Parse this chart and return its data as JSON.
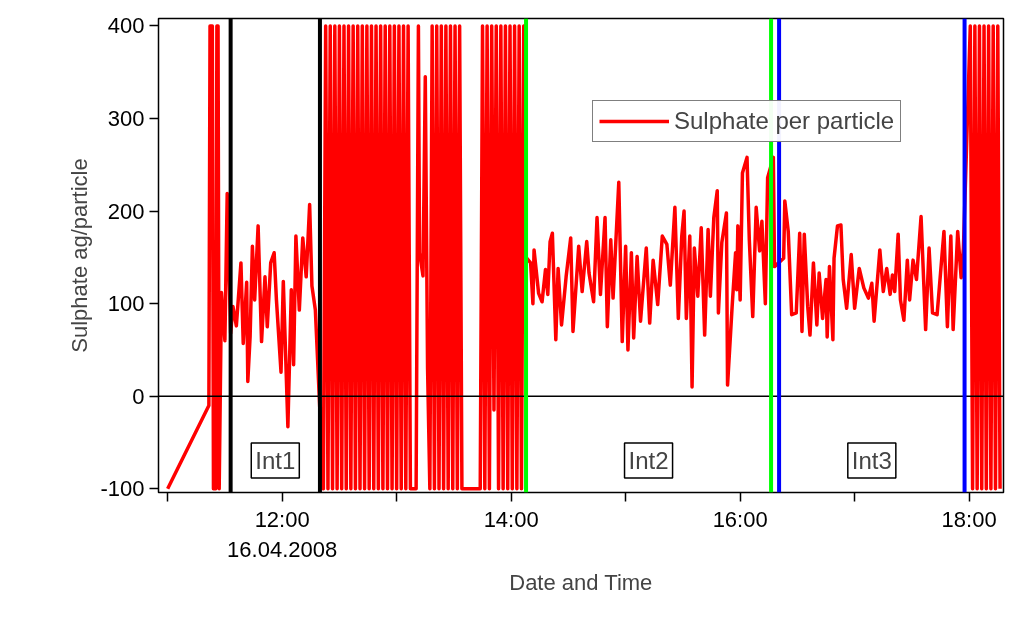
{
  "chart_data": {
    "type": "line",
    "xlabel": "Date and Time",
    "ylabel": "Sulphate ag/particle",
    "xlim": [
      10.92,
      18.3
    ],
    "ylim": [
      -104,
      408
    ],
    "xticks": [
      {
        "value": 11,
        "label": null
      },
      {
        "value": 12,
        "label": "12:00\n16.04.2008"
      },
      {
        "value": 13,
        "label": null
      },
      {
        "value": 14,
        "label": "14:00"
      },
      {
        "value": 15,
        "label": null
      },
      {
        "value": 16,
        "label": "16:00"
      },
      {
        "value": 17,
        "label": null
      },
      {
        "value": 18,
        "label": "18:00"
      }
    ],
    "yticks": [
      -100,
      0,
      100,
      200,
      300,
      400
    ],
    "grid": false,
    "legend": "top right",
    "marker": "none",
    "line_style": "solid",
    "ref_lines": [
      {
        "axis": "y",
        "value": 0,
        "label": null,
        "color": "#000000"
      },
      {
        "axis": "x",
        "value": 11.55,
        "label": null,
        "color": "#000000"
      },
      {
        "axis": "x",
        "value": 12.33,
        "label": null,
        "color": "#000000"
      },
      {
        "axis": "x",
        "value": 14.13,
        "label": null,
        "color": "#00ff00"
      },
      {
        "axis": "x",
        "value": 16.27,
        "label": null,
        "color": "#00ff00"
      },
      {
        "axis": "x",
        "value": 16.34,
        "label": null,
        "color": "#0000ff"
      },
      {
        "axis": "x",
        "value": 17.96,
        "label": null,
        "color": "#0000ff"
      }
    ],
    "annotations": [
      "Int1",
      "Int2",
      "Int3"
    ],
    "series": [
      {
        "name": "Sulphate per particle",
        "color": "#ff0000",
        "x": [
          11.0,
          11.36,
          11.37,
          11.39,
          11.4,
          11.42,
          11.43,
          11.44,
          11.45,
          11.47,
          11.5,
          11.52,
          11.55,
          11.57,
          11.6,
          11.64,
          11.66,
          11.69,
          11.7,
          11.72,
          11.74,
          11.76,
          11.79,
          11.82,
          11.85,
          11.87,
          11.9,
          11.93,
          11.95,
          11.99,
          12.01,
          12.05,
          12.08,
          12.1,
          12.12,
          12.15,
          12.18,
          12.21,
          12.24,
          12.26,
          12.29,
          12.36,
          12.38,
          12.4,
          12.42,
          12.44,
          12.46,
          12.48,
          12.5,
          12.52,
          12.54,
          12.56,
          12.58,
          12.6,
          12.62,
          12.64,
          12.66,
          12.68,
          12.7,
          12.72,
          12.74,
          12.76,
          12.78,
          12.8,
          12.82,
          12.84,
          12.86,
          12.88,
          12.9,
          12.92,
          12.94,
          12.96,
          12.98,
          13.0,
          13.02,
          13.04,
          13.06,
          13.08,
          13.1,
          13.12,
          13.17,
          13.19,
          13.2,
          13.23,
          13.25,
          13.27,
          13.29,
          13.31,
          13.33,
          13.35,
          13.37,
          13.39,
          13.41,
          13.43,
          13.45,
          13.47,
          13.49,
          13.51,
          13.53,
          13.55,
          13.57,
          13.73,
          13.75,
          13.77,
          13.79,
          13.81,
          13.83,
          13.85,
          13.87,
          13.89,
          13.91,
          13.93,
          13.95,
          13.97,
          13.99,
          14.01,
          14.03,
          14.05,
          14.07,
          14.09,
          14.11,
          14.13,
          14.17,
          14.19,
          14.2,
          14.24,
          14.27,
          14.3,
          14.32,
          14.34,
          14.36,
          14.39,
          14.41,
          14.44,
          14.48,
          14.52,
          14.54,
          14.59,
          14.62,
          14.66,
          14.68,
          14.72,
          14.75,
          14.78,
          14.82,
          14.84,
          14.87,
          14.89,
          14.94,
          14.97,
          15.0,
          15.02,
          15.05,
          15.07,
          15.1,
          15.13,
          15.18,
          15.21,
          15.24,
          15.28,
          15.32,
          15.36,
          15.39,
          15.43,
          15.46,
          15.49,
          15.51,
          15.53,
          15.56,
          15.58,
          15.6,
          15.63,
          15.66,
          15.69,
          15.72,
          15.74,
          15.77,
          15.8,
          15.81,
          15.84,
          15.88,
          15.89,
          15.93,
          15.96,
          15.97,
          15.98,
          16.0,
          16.02,
          16.06,
          16.08,
          16.11,
          16.14,
          16.17,
          16.19,
          16.22,
          16.24,
          16.29,
          16.3,
          16.38,
          16.39,
          16.42,
          16.45,
          16.49,
          16.52,
          16.54,
          16.56,
          16.59,
          16.61,
          16.64,
          16.67,
          16.69,
          16.72,
          16.75,
          16.76,
          16.78,
          16.81,
          16.82,
          16.85,
          16.88,
          16.9,
          16.93,
          16.97,
          17.0,
          17.04,
          17.08,
          17.12,
          17.15,
          17.17,
          17.22,
          17.25,
          17.28,
          17.31,
          17.33,
          17.35,
          17.38,
          17.4,
          17.43,
          17.46,
          17.48,
          17.51,
          17.54,
          17.58,
          17.62,
          17.65,
          17.68,
          17.72,
          17.75,
          17.78,
          17.81,
          17.84,
          17.86,
          17.9,
          17.93,
          17.95,
          18.01,
          18.03,
          18.05,
          18.07,
          18.09,
          18.11,
          18.13,
          18.15,
          18.17,
          18.19,
          18.21,
          18.23,
          18.25,
          18.27
        ],
        "values": [
          -100,
          -10,
          400,
          400,
          -100,
          -100,
          400,
          400,
          -100,
          112,
          60,
          219,
          68,
          97,
          76,
          144,
          57,
          123,
          16,
          64,
          162,
          104,
          184,
          59,
          129,
          75,
          144,
          155,
          104,
          26,
          124,
          -33,
          115,
          34,
          173,
          93,
          171,
          129,
          207,
          119,
          93,
          -100,
          400,
          -100,
          400,
          -100,
          400,
          -100,
          400,
          -100,
          400,
          -100,
          400,
          -100,
          400,
          -100,
          400,
          -100,
          400,
          -100,
          400,
          -100,
          400,
          -100,
          400,
          -100,
          400,
          -100,
          400,
          -100,
          400,
          -100,
          400,
          -100,
          400,
          -100,
          400,
          -100,
          400,
          -100,
          -100,
          400,
          155,
          130,
          345,
          30,
          -100,
          400,
          -100,
          400,
          -100,
          400,
          -100,
          400,
          -100,
          400,
          -100,
          400,
          -100,
          400,
          -100,
          -100,
          400,
          -100,
          400,
          -100,
          400,
          -15,
          400,
          -100,
          400,
          -100,
          400,
          -100,
          400,
          -100,
          400,
          -100,
          400,
          -100,
          400,
          150,
          144,
          100,
          158,
          111,
          102,
          137,
          110,
          167,
          176,
          61,
          138,
          77,
          129,
          171,
          70,
          162,
          113,
          167,
          133,
          102,
          193,
          110,
          193,
          75,
          169,
          106,
          231,
          59,
          162,
          50,
          155,
          63,
          151,
          81,
          160,
          79,
          147,
          99,
          173,
          164,
          120,
          204,
          84,
          173,
          200,
          84,
          173,
          10,
          160,
          108,
          182,
          66,
          180,
          108,
          193,
          222,
          90,
          166,
          198,
          12,
          97,
          155,
          115,
          184,
          104,
          241,
          258,
          169,
          86,
          204,
          157,
          189,
          100,
          236,
          258,
          140,
          149,
          211,
          178,
          88,
          90,
          176,
          70,
          175,
          97,
          66,
          144,
          77,
          133,
          84,
          126,
          64,
          140,
          61,
          149,
          184,
          185,
          126,
          95,
          153,
          95,
          138,
          117,
          106,
          122,
          81,
          158,
          113,
          138,
          110,
          131,
          113,
          175,
          104,
          82,
          147,
          104,
          147,
          126,
          194,
          72,
          160,
          90,
          88,
          133,
          178,
          75,
          173,
          72,
          178,
          128,
          160,
          400,
          -100,
          400,
          -100,
          400,
          -100,
          400,
          -100,
          400,
          -100,
          400,
          -100,
          400,
          -100
        ]
      }
    ]
  }
}
